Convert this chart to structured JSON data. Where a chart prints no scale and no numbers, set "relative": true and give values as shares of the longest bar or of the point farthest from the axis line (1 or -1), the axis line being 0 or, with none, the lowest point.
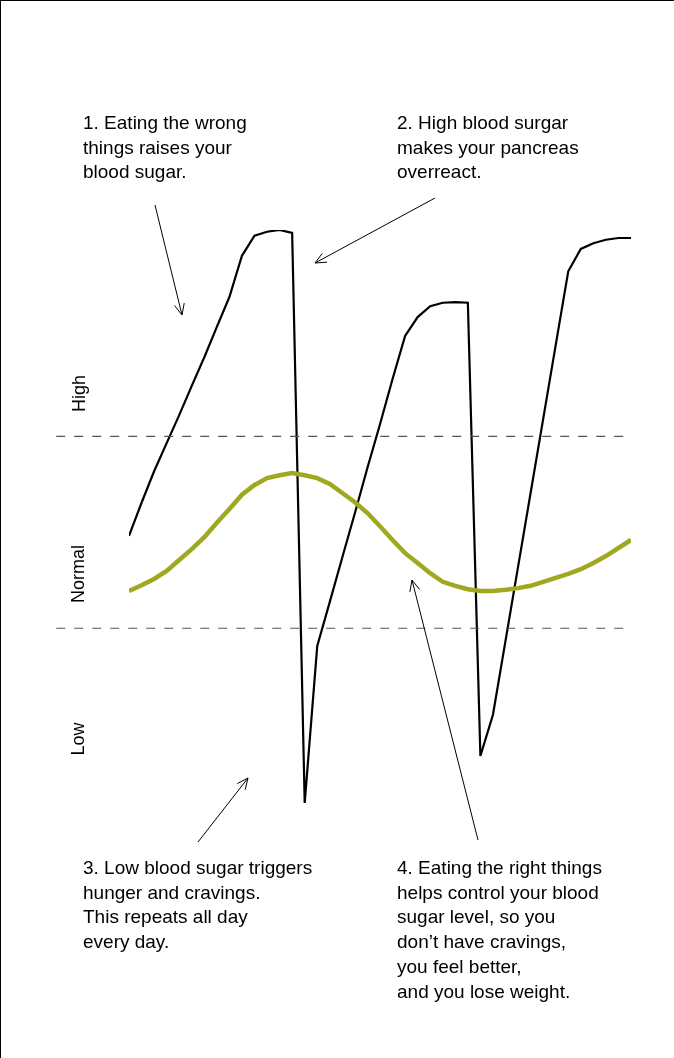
{
  "chart_data": {
    "type": "line",
    "relative": true,
    "marker": "none",
    "categories": [
      null,
      null,
      null,
      null,
      null,
      null,
      null,
      null,
      null,
      null,
      null,
      null,
      null,
      null,
      null,
      null,
      null,
      null,
      null,
      null,
      null,
      null,
      null,
      null,
      null,
      null,
      null,
      null,
      null,
      null,
      null,
      null,
      null,
      null,
      null,
      null,
      null,
      null,
      null,
      null,
      null
    ],
    "series": [
      {
        "color": "#000000",
        "line_style": "solid",
        "values": [
          0.466,
          0.524,
          0.579,
          0.628,
          0.677,
          0.728,
          0.778,
          0.831,
          0.883,
          0.955,
          0.99,
          0.997,
          1,
          0.995,
          0,
          0.274,
          0.351,
          0.429,
          0.506,
          0.585,
          0.661,
          0.74,
          0.815,
          0.848,
          0.867,
          0.873,
          0.874,
          0.873,
          0.082,
          0.154,
          0.283,
          0.412,
          0.541,
          0.67,
          0.799,
          0.928,
          0.967,
          0.977,
          0.983,
          0.986,
          0.986
        ]
      },
      {
        "color": "#a0a820",
        "line_style": "solid",
        "values": [
          0.37,
          0.38,
          0.391,
          0.405,
          0.424,
          0.443,
          0.464,
          0.489,
          0.513,
          0.538,
          0.555,
          0.567,
          0.572,
          0.576,
          0.572,
          0.567,
          0.557,
          0.541,
          0.525,
          0.506,
          0.483,
          0.459,
          0.436,
          0.419,
          0.401,
          0.386,
          0.379,
          0.373,
          0.37,
          0.37,
          0.372,
          0.375,
          0.379,
          0.386,
          0.393,
          0.4,
          0.408,
          0.419,
          0.431,
          0.445,
          0.459
        ]
      }
    ],
    "ref_lines": [
      {
        "axis": "y",
        "value": 0.64,
        "color": "#555555",
        "line_style": "dashed"
      },
      {
        "axis": "y",
        "value": 0.305,
        "color": "#555555",
        "line_style": "dashed"
      }
    ],
    "annotations": [
      "High",
      "Normal",
      "Low",
      "1. Eating the wrong\nthings raises your\nblood sugar.",
      "2. High blood surgar\nmakes your pancreas\noverreact.",
      "3. Low blood sugar triggers\nhunger and cravings.\nThis repeats all day\nevery day.",
      "4. Eating the right things\nhelps control your blood\nsugar level, so you\ndon’t have cravings,\nyou feel better,\nand you lose weight."
    ]
  }
}
